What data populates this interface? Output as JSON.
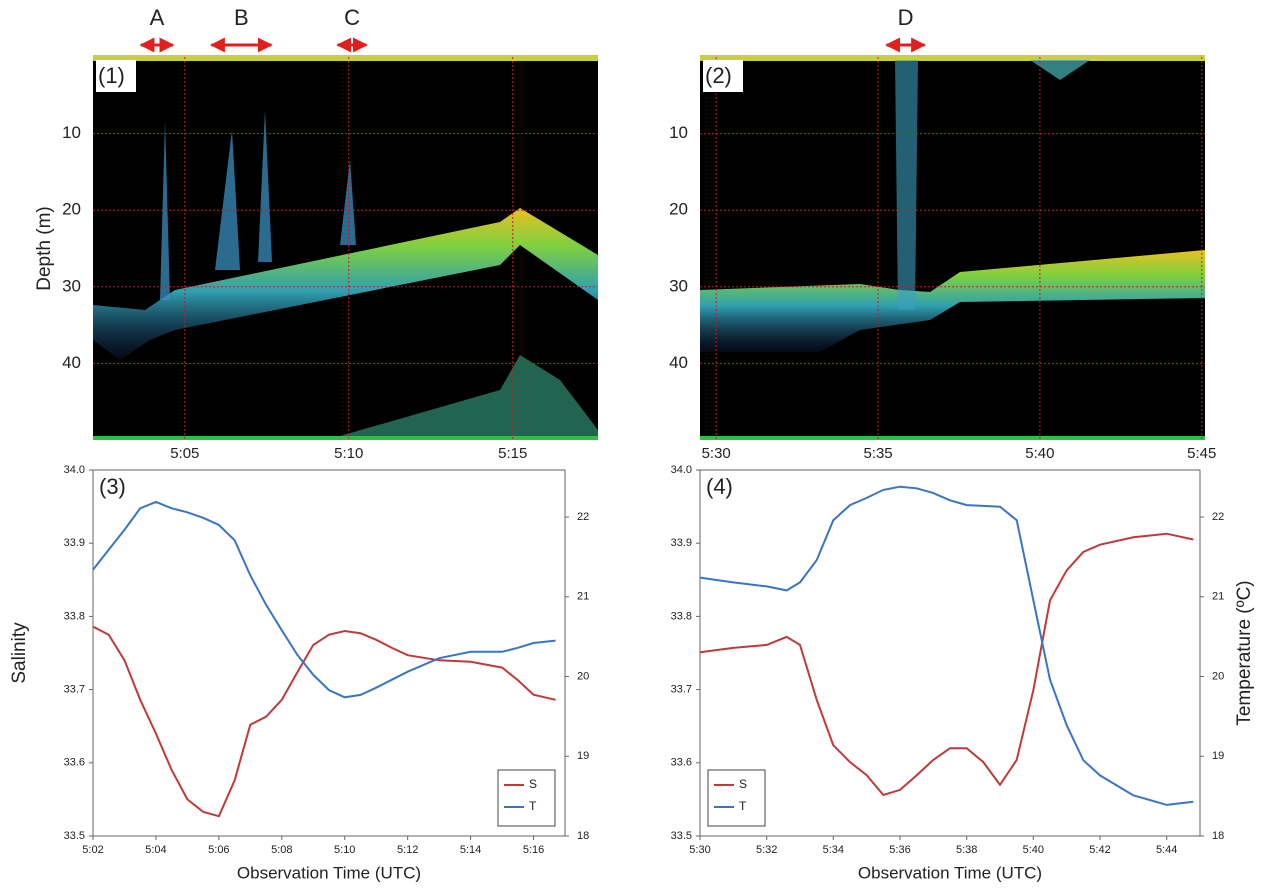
{
  "chart_data": [
    {
      "type": "echogram",
      "panel_label": "(1)",
      "y_label": "Depth (m)",
      "ylim": [
        0,
        50
      ],
      "yticks": [
        10,
        20,
        30,
        40
      ],
      "xlim": [
        302.2,
        317.6
      ],
      "xticks": [
        {
          "value": 305,
          "label": "5:05"
        },
        {
          "value": 310,
          "label": "5:10"
        },
        {
          "value": 315,
          "label": "5:15"
        }
      ],
      "annotations": [
        {
          "text": "A",
          "x": [
            303.6,
            304.7
          ]
        },
        {
          "text": "B",
          "x": [
            305.75,
            307.7
          ]
        },
        {
          "text": "C",
          "x": [
            309.6,
            310.6
          ]
        }
      ]
    },
    {
      "type": "echogram",
      "panel_label": "(2)",
      "ylim": [
        0,
        50
      ],
      "yticks": [
        10,
        20,
        30,
        40
      ],
      "xlim": [
        329.5,
        345.1
      ],
      "xticks": [
        {
          "value": 330,
          "label": "5:30"
        },
        {
          "value": 335,
          "label": "5:35"
        },
        {
          "value": 340,
          "label": "5:40"
        },
        {
          "value": 345,
          "label": "5:45"
        }
      ],
      "annotations": [
        {
          "text": "D",
          "x": [
            335.2,
            336.5
          ]
        }
      ]
    },
    {
      "type": "line",
      "panel_label": "(3)",
      "y_label": "Salinity",
      "x_label": "Observation Time (UTC)",
      "xlim": [
        302,
        317
      ],
      "xticks": [
        {
          "value": 302,
          "label": "5:02"
        },
        {
          "value": 304,
          "label": "5:04"
        },
        {
          "value": 306,
          "label": "5:06"
        },
        {
          "value": 308,
          "label": "5:08"
        },
        {
          "value": 310,
          "label": "5:10"
        },
        {
          "value": 312,
          "label": "5:12"
        },
        {
          "value": 314,
          "label": "5:14"
        },
        {
          "value": 316,
          "label": "5:16"
        }
      ],
      "ylim": [
        33.5,
        34
      ],
      "yticks": [
        33.5,
        33.6,
        33.7,
        33.8,
        33.9,
        {
          "value": 34,
          "label": "34.0"
        }
      ],
      "y2lim": [
        18,
        22.59
      ],
      "y2ticks": [
        18,
        19,
        20,
        21,
        22
      ],
      "legend": "lower right",
      "x": [
        302,
        302.5,
        303,
        303.5,
        304,
        304.5,
        305,
        305.5,
        306,
        306.5,
        307,
        307.5,
        308,
        308.5,
        309,
        309.5,
        310,
        310.5,
        311,
        311.5,
        312,
        313,
        314,
        315,
        315.5,
        316,
        316.7
      ],
      "series": [
        {
          "name": "S",
          "color": "#c0393b",
          "values": [
            33.786,
            33.775,
            33.74,
            33.686,
            33.64,
            33.59,
            33.55,
            33.533,
            33.527,
            33.576,
            33.652,
            33.663,
            33.686,
            33.724,
            33.761,
            33.775,
            33.78,
            33.777,
            33.768,
            33.757,
            33.747,
            33.74,
            33.738,
            33.73,
            33.713,
            33.693,
            33.686
          ]
        },
        {
          "name": "T",
          "color": "#3a75c4",
          "axis": "y2",
          "values": [
            21.34,
            21.59,
            21.84,
            22.11,
            22.19,
            22.11,
            22.06,
            21.99,
            21.9,
            21.71,
            21.27,
            20.9,
            20.58,
            20.27,
            20.02,
            19.83,
            19.74,
            19.77,
            19.86,
            19.96,
            20.06,
            20.23,
            20.31,
            20.31,
            20.36,
            20.42,
            20.45
          ]
        }
      ]
    },
    {
      "type": "line",
      "panel_label": "(4)",
      "y2_label": "Temperature (ºC)",
      "x_label": "Observation Time (UTC)",
      "xlim": [
        330,
        345
      ],
      "xticks": [
        {
          "value": 330,
          "label": "5:30"
        },
        {
          "value": 332,
          "label": "5:32"
        },
        {
          "value": 334,
          "label": "5:34"
        },
        {
          "value": 336,
          "label": "5:36"
        },
        {
          "value": 338,
          "label": "5:38"
        },
        {
          "value": 340,
          "label": "5:40"
        },
        {
          "value": 342,
          "label": "5:42"
        },
        {
          "value": 344,
          "label": "5:44"
        }
      ],
      "ylim": [
        33.5,
        34
      ],
      "yticks": [
        33.5,
        33.6,
        33.7,
        33.8,
        33.9,
        {
          "value": 34,
          "label": "34.0"
        }
      ],
      "y2lim": [
        18,
        22.59
      ],
      "y2ticks": [
        18,
        19,
        20,
        21,
        22
      ],
      "legend": "lower left",
      "x": [
        330,
        331,
        332,
        332.6,
        333,
        333.5,
        334,
        334.5,
        335,
        335.5,
        336,
        336.5,
        337,
        337.5,
        338,
        338.5,
        339,
        339.5,
        340,
        340.5,
        341,
        341.5,
        342,
        343,
        344,
        344.8
      ],
      "series": [
        {
          "name": "S",
          "color": "#c0393b",
          "values": [
            33.751,
            33.757,
            33.761,
            33.772,
            33.761,
            33.686,
            33.624,
            33.601,
            33.583,
            33.556,
            33.563,
            33.583,
            33.604,
            33.62,
            33.62,
            33.601,
            33.57,
            33.604,
            33.699,
            33.822,
            33.863,
            33.888,
            33.898,
            33.908,
            33.913,
            33.905
          ]
        },
        {
          "name": "T",
          "color": "#3a75c4",
          "axis": "y2",
          "values": [
            21.24,
            21.18,
            21.13,
            21.08,
            21.18,
            21.46,
            21.96,
            22.15,
            22.24,
            22.34,
            22.38,
            22.36,
            22.3,
            22.21,
            22.15,
            22.14,
            22.13,
            21.96,
            20.96,
            19.96,
            19.39,
            18.95,
            18.76,
            18.51,
            18.39,
            18.43
          ]
        }
      ]
    }
  ]
}
